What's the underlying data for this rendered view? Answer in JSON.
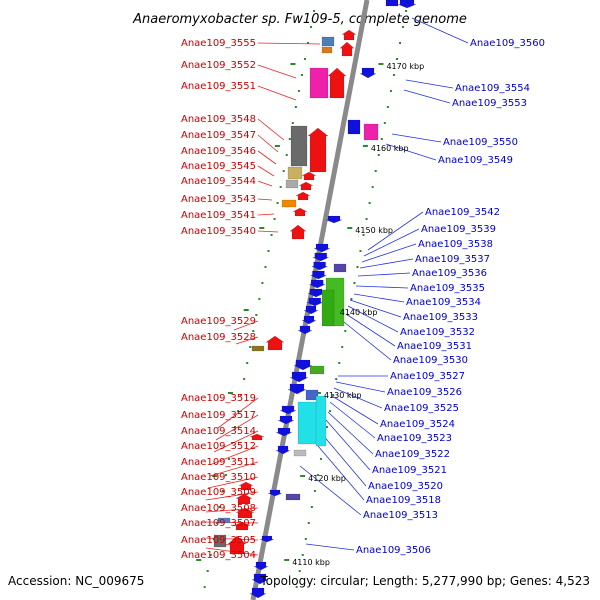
{
  "title": "Anaeromyxobacter sp. Fw109-5, complete genome",
  "accession": "Accession: NC_009675",
  "summary": "Topology: circular; Length: 5,277,990 bp; Genes: 4,523",
  "colors": {
    "forward_strand": "#ee1111",
    "reverse_strand": "#1111dd",
    "left_labels": "#cc0000",
    "right_labels": "#0000cc",
    "backbone": "#888888",
    "tick": "#2a8a2a"
  },
  "kbp_marks": [
    "4170 kbp",
    "4160 kbp",
    "4150 kbp",
    "4140 kbp",
    "4130 kbp",
    "4120 kbp",
    "4110 kbp"
  ],
  "left_genes": [
    "Anae109_3555",
    "Anae109_3552",
    "Anae109_3551",
    "Anae109_3548",
    "Anae109_3547",
    "Anae109_3546",
    "Anae109_3545",
    "Anae109_3544",
    "Anae109_3543",
    "Anae109_3541",
    "Anae109_3540",
    "Anae109_3529",
    "Anae109_3528",
    "Anae109_3519",
    "Anae109_3517",
    "Anae109_3514",
    "Anae109_3512",
    "Anae109_3511",
    "Anae109_3510",
    "Anae109_3509",
    "Anae109_3508",
    "Anae109_3507",
    "Anae109_3505",
    "Anae109_3504"
  ],
  "right_genes": [
    "Anae109_3560",
    "Anae109_3554",
    "Anae109_3553",
    "Anae109_3550",
    "Anae109_3549",
    "Anae109_3542",
    "Anae109_3539",
    "Anae109_3538",
    "Anae109_3537",
    "Anae109_3536",
    "Anae109_3535",
    "Anae109_3534",
    "Anae109_3533",
    "Anae109_3532",
    "Anae109_3531",
    "Anae109_3530",
    "Anae109_3527",
    "Anae109_3526",
    "Anae109_3525",
    "Anae109_3524",
    "Anae109_3523",
    "Anae109_3522",
    "Anae109_3521",
    "Anae109_3520",
    "Anae109_3518",
    "Anae109_3513",
    "Anae109_3506"
  ]
}
